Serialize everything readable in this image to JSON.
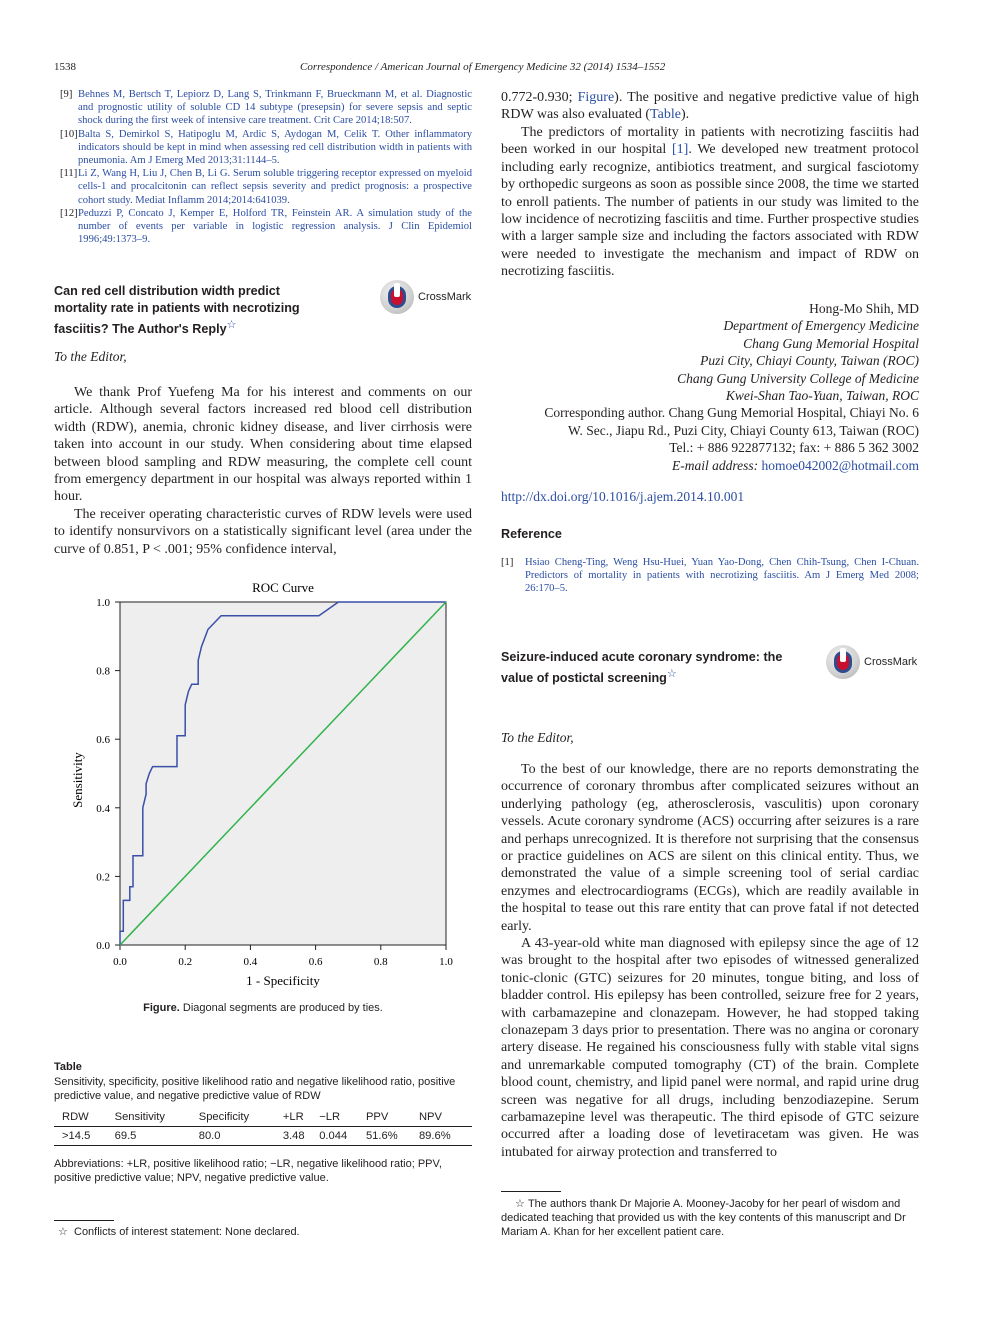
{
  "header": {
    "page_number": "1538",
    "journal": "Correspondence / American Journal of Emergency Medicine 32 (2014) 1534–1552"
  },
  "left_refs": [
    {
      "num": "[9]",
      "text": "Behnes M, Bertsch T, Lepiorz D, Lang S, Trinkmann F, Brueckmann M, et al. Diagnostic and prognostic utility of soluble CD 14 subtype (presepsin) for severe sepsis and septic shock during the first week of intensive care treatment. Crit Care 2014;18:507."
    },
    {
      "num": "[10]",
      "text": "Balta S, Demirkol S, Hatipoglu M, Ardic S, Aydogan M, Celik T. Other inflammatory indicators should be kept in mind when assessing red cell distribution width in patients with pneumonia. Am J Emerg Med 2013;31:1144–5."
    },
    {
      "num": "[11]",
      "text": "Li Z, Wang H, Liu J, Chen B, Li G. Serum soluble triggering receptor expressed on myeloid cells-1 and procalcitonin can reflect sepsis severity and predict prognosis: a prospective cohort study. Mediat Inflamm 2014;2014:641039."
    },
    {
      "num": "[12]",
      "text": "Peduzzi P, Concato J, Kemper E, Holford TR, Feinstein AR. A simulation study of the number of events per variable in logistic regression analysis. J Clin Epidemiol 1996;49:1373–9."
    }
  ],
  "article1": {
    "title_l1": "Can red cell distribution width predict",
    "title_l2": "mortality rate in patients with necrotizing",
    "title_l3": "fasciitis? The Author's Reply",
    "star": "☆",
    "crossmark": "CrossMark",
    "salutation": "To the Editor,",
    "para1": "We thank Prof Yuefeng Ma for his interest and comments on our article. Although several factors increased red blood cell distribution width (RDW), anemia, chronic kidney disease, and liver cirrhosis were taken into account in our study. When considering about time elapsed between blood sampling and RDW measuring, the complete cell count from emergency department in our hospital was always reported within 1 hour.",
    "para2": "The receiver operating characteristic curves of RDW levels were used to identify nonsurvivors on a statistically significant level (area under the curve of 0.851, P < .001; 95% confidence interval,",
    "para2_cont_a": "0.772-0.930; ",
    "para2_cont_fig": "Figure",
    "para2_cont_b": "). The positive and negative predictive value of high RDW was also evaluated (",
    "para2_cont_tab": "Table",
    "para2_cont_c": ").",
    "para3_a": "The predictors of mortality in patients with necrotizing fasciitis had been worked in our hospital ",
    "para3_ref": "[1]",
    "para3_b": ". We developed new treatment protocol including early recognize, antibiotics treatment, and surgical fasciotomy by orthopedic surgeons as soon as possible since 2008, the time we started to enroll patients. The number of patients in our study was limited to the low incidence of necrotizing fasciitis and time. Further prospective studies with a larger sample size and including the factors associated with RDW were needed to investigate the mechanism and impact of RDW on necrotizing fasciitis.",
    "author": "Hong-Mo Shih, MD",
    "aff1": "Department of Emergency Medicine",
    "aff2": "Chang Gung Memorial Hospital",
    "aff3": "Puzi City, Chiayi County, Taiwan (ROC)",
    "aff4": "Chang Gung University College of Medicine",
    "aff5": "Kwei-Shan Tao-Yuan, Taiwan, ROC",
    "corr1": "Corresponding author. Chang Gung Memorial Hospital, Chiayi No. 6",
    "corr2": "W. Sec., Jiapu Rd., Puzi City, Chiayi County 613, Taiwan (ROC)",
    "corr3": "Tel.: + 886 922877132; fax: + 886 5 362 3002",
    "email_label": "E-mail address:",
    "email": "homoe042002@hotmail.com",
    "doi": "http://dx.doi.org/10.1016/j.ajem.2014.10.001",
    "reference_heading": "Reference",
    "ref1_num": "[1]",
    "ref1_text": "Hsiao Cheng-Ting, Weng Hsu-Huei, Yuan Yao-Dong, Chen Chih-Tsung, Chen I-Chuan. Predictors of mortality in patients with necrotizing fasciitis. Am J Emerg Med 2008; 26:170–5.",
    "figure_caption_label": "Figure.",
    "figure_caption_text": "Diagonal segments are produced by ties.",
    "table_label": "Table",
    "table_caption": "Sensitivity, specificity, positive likelihood ratio and negative likelihood ratio, positive predictive value, and negative predictive value of RDW",
    "table_headers": [
      "RDW",
      "Sensitivity",
      "Specificity",
      "+LR",
      "−LR",
      "PPV",
      "NPV"
    ],
    "table_row": [
      ">14.5",
      "69.5",
      "80.0",
      "3.48",
      "0.044",
      "51.6%",
      "89.6%"
    ],
    "table_abbrev": "Abbreviations: +LR, positive likelihood ratio; −LR, negative likelihood ratio; PPV, positive predictive value; NPV, negative predictive value.",
    "footnote": "Conflicts of interest statement: None declared."
  },
  "article2": {
    "title_l1": "Seizure-induced acute coronary syndrome: the",
    "title_l2": "value of postictal screening",
    "star": "☆",
    "crossmark": "CrossMark",
    "salutation": "To the Editor,",
    "para1": "To the best of our knowledge, there are no reports demonstrating the occurrence of coronary thrombus after complicated seizures without an underlying pathology (eg, atherosclerosis, vasculitis) upon coronary vessels. Acute coronary syndrome (ACS) occurring after seizures is a rare and perhaps unrecognized. It is therefore not surprising that the consensus or practice guidelines on ACS are silent on this clinical entity. Thus, we demonstrated the value of a simple screening tool of serial cardiac enzymes and electrocardiograms (ECGs), which are readily available in the hospital to tease out this rare entity that can prove fatal if not detected early.",
    "para2": "A 43-year-old white man diagnosed with epilepsy since the age of 12 was brought to the hospital after two episodes of witnessed generalized tonic-clonic (GTC) seizures for 20 minutes, tongue biting, and loss of bladder control. His epilepsy has been controlled, seizure free for 2 years, with carbamazepine and clonazepam. However, he had stopped taking clonazepam 3 days prior to presentation. There was no angina or coronary artery disease. He regained his consciousness fully with stable vital signs and unremarkable computed tomography (CT) of the brain. Complete blood count, chemistry, and lipid panel were normal, and rapid urine drug screen was negative for all drugs, including benzodiazepine. Serum carbamazepine level was therapeutic. The third episode of GTC seizure occurred after a loading dose of levetiracetam was given. He was intubated for airway protection and transferred to",
    "footnote": "The authors thank Dr Majorie A. Mooney-Jacoby for her pearl of wisdom and dedicated teaching that provided us with the key contents of this manuscript and Dr Mariam A. Khan for her excellent patient care."
  },
  "chart_data": {
    "type": "line",
    "title": "ROC Curve",
    "xlabel": "1 - Specificity",
    "ylabel": "Sensitivity",
    "xlim": [
      0,
      1
    ],
    "ylim": [
      0,
      1
    ],
    "x_ticks": [
      "0.0",
      "0.2",
      "0.4",
      "0.6",
      "0.8",
      "1.0"
    ],
    "y_ticks": [
      "0.0",
      "0.2",
      "0.4",
      "0.6",
      "0.8",
      "1.0"
    ],
    "grid": false,
    "colors": {
      "roc": "#3a4fa8",
      "reference": "#2fb34a",
      "plot_bg": "#eeeeee"
    },
    "series": [
      {
        "values": [
          [
            0,
            0
          ],
          [
            0,
            0.04
          ],
          [
            0.01,
            0.04
          ],
          [
            0.01,
            0.13
          ],
          [
            0.03,
            0.13
          ],
          [
            0.03,
            0.17
          ],
          [
            0.04,
            0.17
          ],
          [
            0.04,
            0.26
          ],
          [
            0.07,
            0.26
          ],
          [
            0.07,
            0.4
          ],
          [
            0.08,
            0.44
          ],
          [
            0.08,
            0.47
          ],
          [
            0.09,
            0.5
          ],
          [
            0.1,
            0.52
          ],
          [
            0.175,
            0.52
          ],
          [
            0.175,
            0.61
          ],
          [
            0.2,
            0.61
          ],
          [
            0.2,
            0.7
          ],
          [
            0.21,
            0.74
          ],
          [
            0.22,
            0.76
          ],
          [
            0.24,
            0.76
          ],
          [
            0.24,
            0.83
          ],
          [
            0.25,
            0.87
          ],
          [
            0.27,
            0.92
          ],
          [
            0.31,
            0.96
          ],
          [
            0.61,
            0.96
          ],
          [
            0.67,
            1.0
          ],
          [
            1.0,
            1.0
          ]
        ]
      },
      {
        "values": [
          [
            0,
            0
          ],
          [
            1,
            1
          ]
        ]
      }
    ]
  }
}
